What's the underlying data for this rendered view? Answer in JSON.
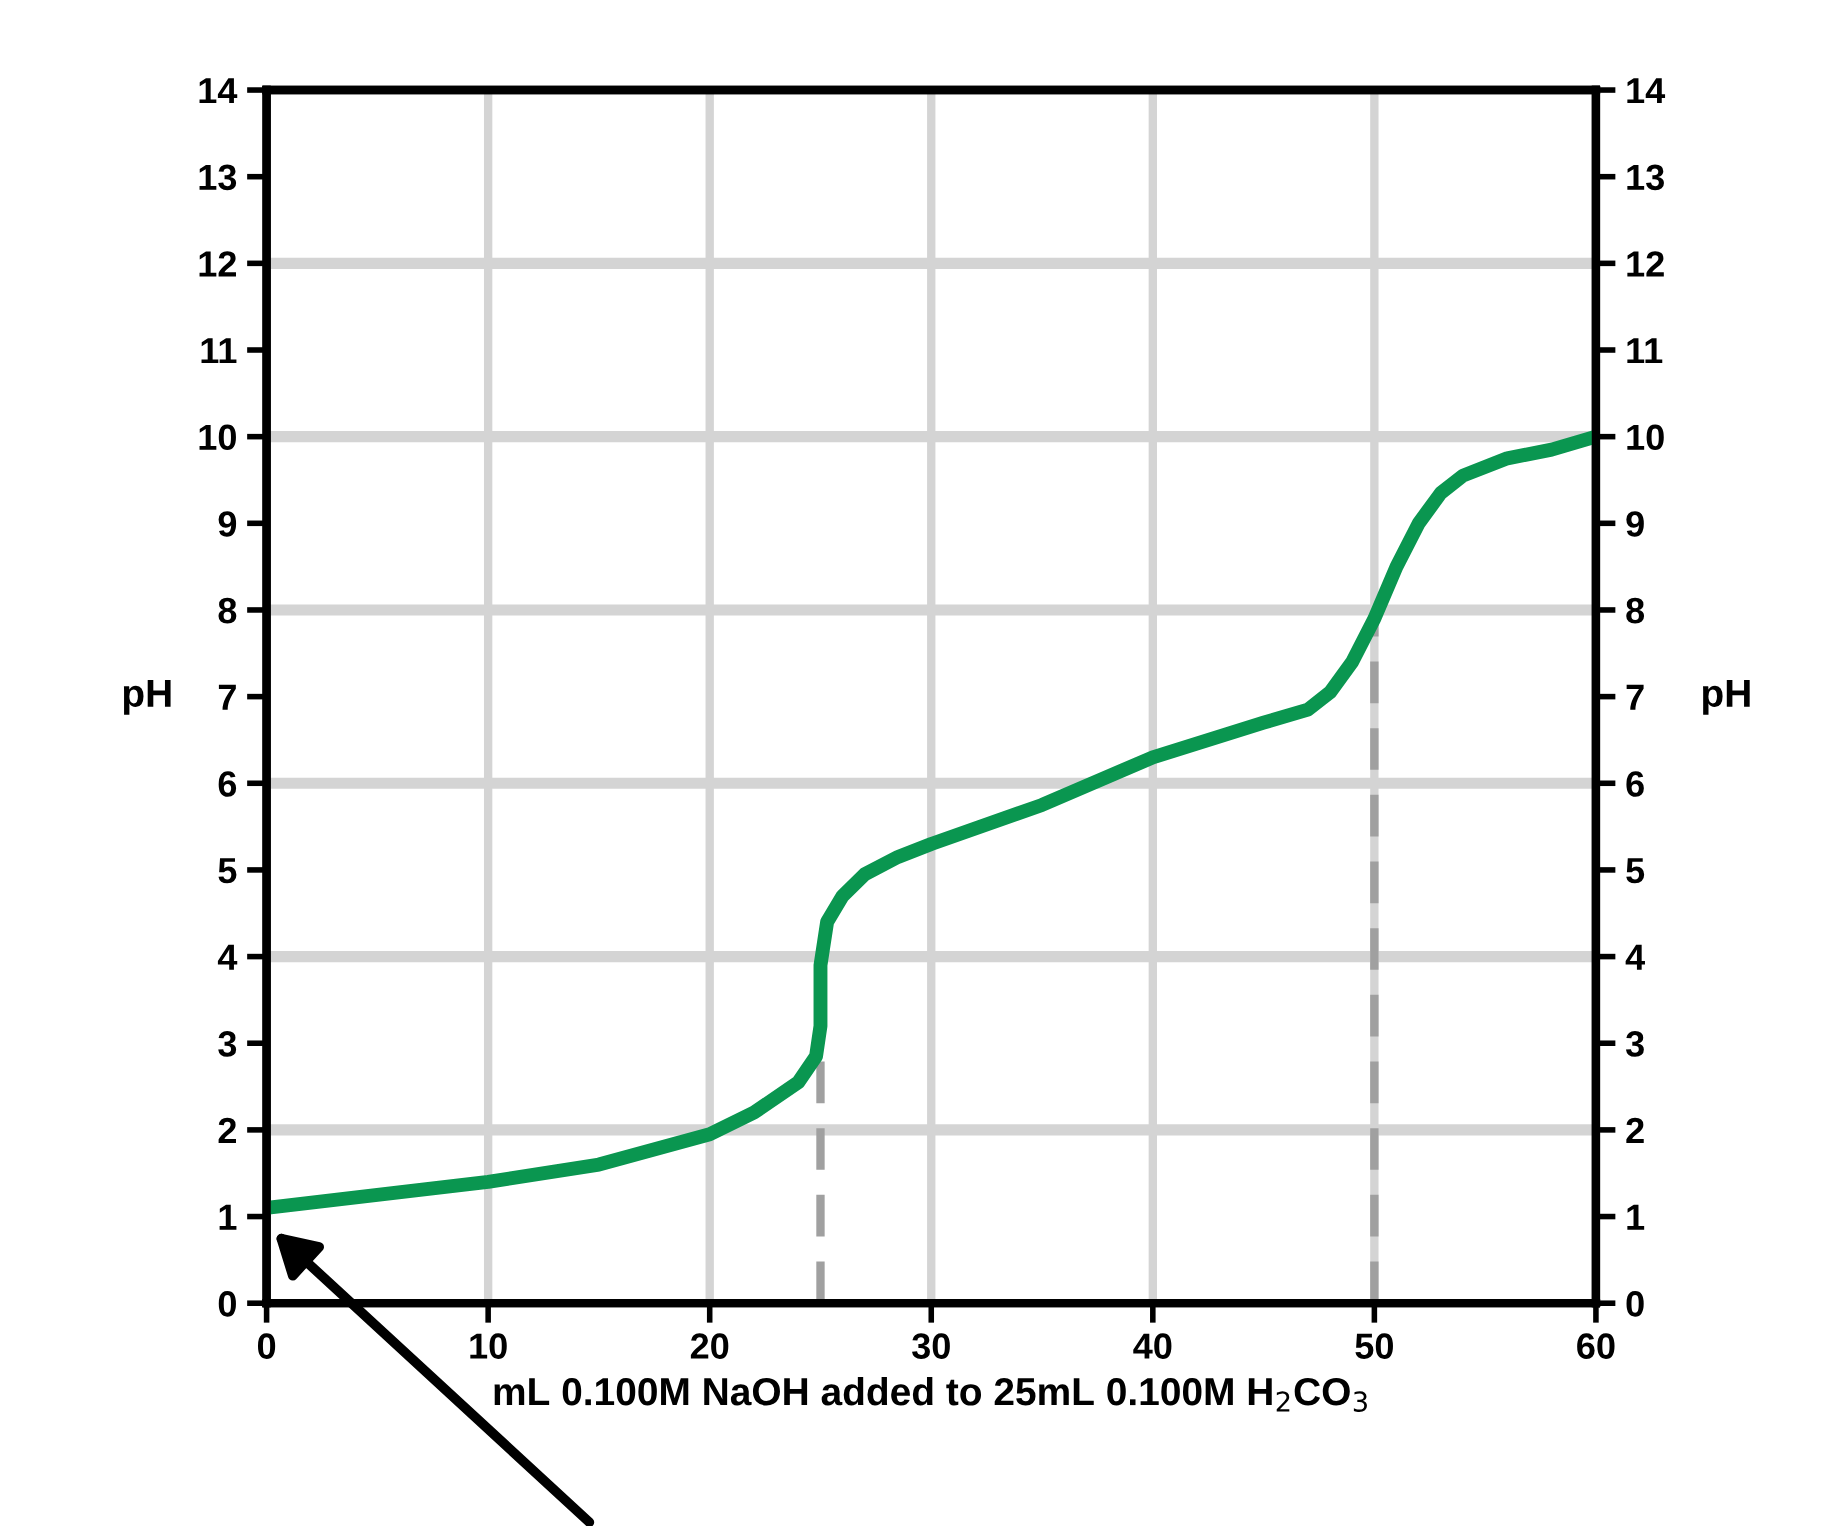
{
  "chart_data": {
    "type": "line",
    "xlabel": "mL 0.100M NaOH added to 25mL 0.100M H$_{2}$CO$_{3}$",
    "ylabel": "pH",
    "y2label": "pH",
    "series": [
      {
        "color": "#0a9650",
        "x": [
          0,
          5,
          10,
          15,
          20,
          22,
          24,
          24.8,
          25,
          25,
          25.3,
          26,
          27,
          28.5,
          30,
          35,
          40,
          45,
          47,
          48,
          49,
          50,
          51,
          52,
          53,
          54,
          56,
          58,
          60
        ],
        "values": [
          1.1,
          1.25,
          1.4,
          1.6,
          1.95,
          2.2,
          2.55,
          2.85,
          3.2,
          3.9,
          4.4,
          4.7,
          4.95,
          5.15,
          5.3,
          5.75,
          6.3,
          6.7,
          6.85,
          7.05,
          7.4,
          7.9,
          8.5,
          9.0,
          9.35,
          9.55,
          9.75,
          9.85,
          10.0
        ]
      }
    ],
    "xlim": [
      0,
      60
    ],
    "xticks": [
      0,
      10,
      20,
      30,
      40,
      50,
      60
    ],
    "ylim": [
      0,
      14
    ],
    "yticks": [
      0,
      1,
      2,
      3,
      4,
      5,
      6,
      7,
      8,
      9,
      10,
      11,
      12,
      13,
      14
    ],
    "y2lim": [
      0,
      14
    ],
    "y2ticks": [
      0,
      1,
      2,
      3,
      4,
      5,
      6,
      7,
      8,
      9,
      10,
      11,
      12,
      13,
      14
    ],
    "ref_lines": [
      {
        "axis": "x",
        "value": 25,
        "color": "#a0a0a0",
        "line_style": "dashed"
      },
      {
        "axis": "x",
        "value": 50,
        "color": "#a0a0a0",
        "line_style": "dashed"
      }
    ],
    "grid": true,
    "legend": false,
    "marker": "none",
    "line_style": "solid"
  }
}
